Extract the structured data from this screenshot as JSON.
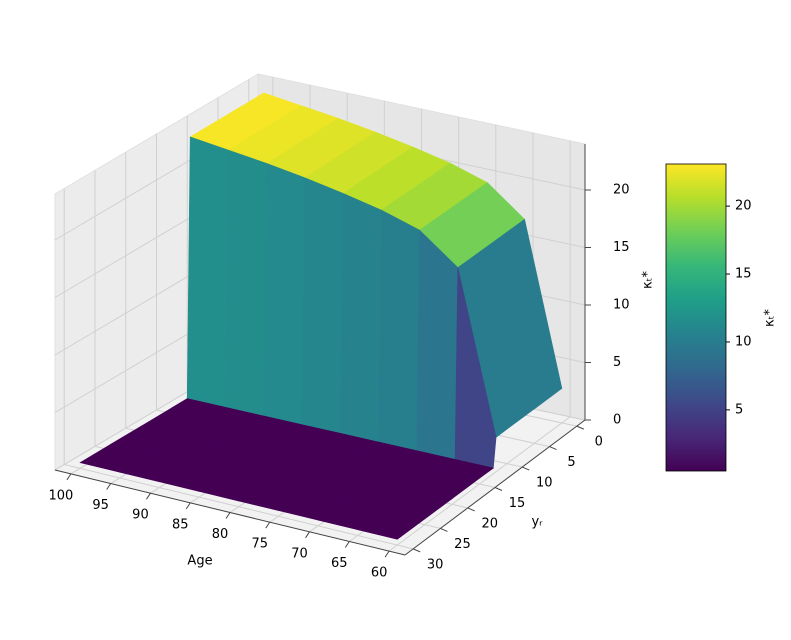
{
  "chart_data": {
    "type": "surface",
    "x_label": "Age",
    "y_label": "yᵣ",
    "z_label": "κₜ*",
    "colorbar_label": "κₜ*",
    "x": [
      60,
      65,
      70,
      75,
      80,
      85,
      90,
      95,
      100
    ],
    "y": [
      0,
      5,
      10,
      12,
      12.5,
      15,
      20,
      25,
      30
    ],
    "z": [
      [
        3,
        17,
        19.5,
        20.5,
        21.2,
        21.8,
        22.3,
        22.7,
        23.1
      ],
      [
        3,
        17,
        19.5,
        20.5,
        21.2,
        21.8,
        22.3,
        22.7,
        23.1
      ],
      [
        3,
        17,
        19.5,
        20.5,
        21.2,
        21.8,
        22.3,
        22.7,
        23.1
      ],
      [
        3,
        17,
        19.5,
        20.5,
        21.2,
        21.8,
        22.3,
        22.7,
        23.1
      ],
      [
        0.5,
        0.5,
        0.5,
        0.5,
        0.5,
        0.5,
        0.5,
        0.5,
        0.5
      ],
      [
        0.5,
        0.5,
        0.5,
        0.5,
        0.5,
        0.5,
        0.5,
        0.5,
        0.5
      ],
      [
        0.5,
        0.5,
        0.5,
        0.5,
        0.5,
        0.5,
        0.5,
        0.5,
        0.5
      ],
      [
        0.5,
        0.5,
        0.5,
        0.5,
        0.5,
        0.5,
        0.5,
        0.5,
        0.5
      ],
      [
        0.5,
        0.5,
        0.5,
        0.5,
        0.5,
        0.5,
        0.5,
        0.5,
        0.5
      ]
    ],
    "xlim": [
      58,
      102
    ],
    "ylim": [
      -1.5,
      31.5
    ],
    "zlim": [
      0,
      24
    ],
    "xticks": [
      60,
      65,
      70,
      75,
      80,
      85,
      90,
      95,
      100
    ],
    "yticks": [
      0,
      5,
      10,
      15,
      20,
      25,
      30
    ],
    "zticks": [
      0,
      5,
      10,
      15,
      20
    ],
    "clim": [
      0.5,
      23.1
    ],
    "colorbar_ticks": [
      5,
      10,
      15,
      20
    ],
    "colormap": [
      "#440154",
      "#482878",
      "#3e4989",
      "#31688e",
      "#26828e",
      "#1f9e89",
      "#35b779",
      "#6ece58",
      "#b5de2b",
      "#fde725"
    ],
    "grid": true
  }
}
